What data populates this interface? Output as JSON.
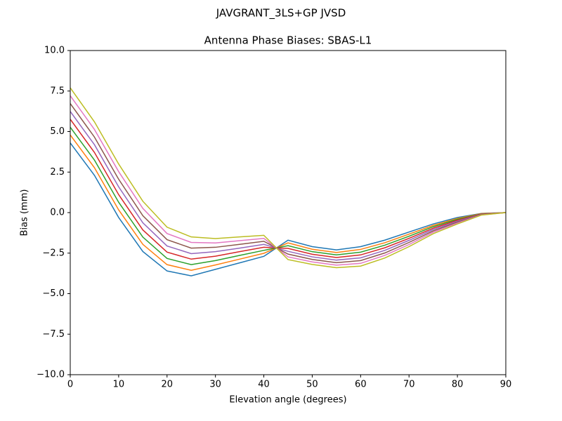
{
  "chart_data": {
    "type": "line",
    "suptitle": "JAVGRANT_3LS+GP JVSD",
    "title": "Antenna Phase Biases: SBAS-L1",
    "x_label": "Elevation angle (degrees)",
    "y_label": "Bias (mm)",
    "x": [
      0,
      5,
      10,
      15,
      20,
      25,
      30,
      35,
      40,
      45,
      50,
      55,
      60,
      65,
      70,
      75,
      80,
      85,
      90
    ],
    "series": [
      {
        "color": "#1f77b4",
        "values": [
          4.3,
          2.3,
          -0.3,
          -2.4,
          -3.6,
          -3.9,
          -3.5,
          -3.1,
          -2.7,
          -1.7,
          -2.1,
          -2.3,
          -2.1,
          -1.7,
          -1.2,
          -0.7,
          -0.3,
          -0.05,
          0
        ]
      },
      {
        "color": "#ff7f0e",
        "values": [
          4.79,
          2.77,
          0.17,
          -1.96,
          -3.21,
          -3.56,
          -3.23,
          -2.87,
          -2.51,
          -1.87,
          -2.26,
          -2.46,
          -2.27,
          -1.86,
          -1.33,
          -0.79,
          -0.36,
          -0.06,
          0
        ]
      },
      {
        "color": "#2ca02c",
        "values": [
          5.27,
          3.24,
          0.64,
          -1.51,
          -2.83,
          -3.21,
          -2.96,
          -2.64,
          -2.33,
          -2.04,
          -2.41,
          -2.61,
          -2.44,
          -2.01,
          -1.46,
          -0.87,
          -0.41,
          -0.08,
          0
        ]
      },
      {
        "color": "#d62728",
        "values": [
          5.76,
          3.71,
          1.11,
          -1.07,
          -2.44,
          -2.87,
          -2.69,
          -2.41,
          -2.14,
          -2.21,
          -2.57,
          -2.77,
          -2.61,
          -2.17,
          -1.59,
          -0.96,
          -0.47,
          -0.09,
          0
        ]
      },
      {
        "color": "#9467bd",
        "values": [
          6.24,
          4.19,
          1.59,
          -0.63,
          -2.06,
          -2.53,
          -2.41,
          -2.19,
          -1.96,
          -2.39,
          -2.73,
          -2.93,
          -2.79,
          -2.33,
          -1.71,
          -1.04,
          -0.53,
          -0.11,
          0
        ]
      },
      {
        "color": "#8c564b",
        "values": [
          6.73,
          4.66,
          2.06,
          -0.19,
          -1.67,
          -2.19,
          -2.14,
          -1.96,
          -1.77,
          -2.56,
          -2.89,
          -3.09,
          -2.96,
          -2.49,
          -1.84,
          -1.13,
          -0.59,
          -0.12,
          0
        ]
      },
      {
        "color": "#e377c2",
        "values": [
          7.21,
          5.13,
          2.53,
          0.26,
          -1.29,
          -1.84,
          -1.87,
          -1.73,
          -1.59,
          -2.73,
          -3.04,
          -3.24,
          -3.13,
          -2.64,
          -1.97,
          -1.21,
          -0.64,
          -0.14,
          0
        ]
      },
      {
        "color": "#bcbd22",
        "values": [
          7.7,
          5.6,
          3.0,
          0.7,
          -0.9,
          -1.5,
          -1.6,
          -1.5,
          -1.4,
          -2.9,
          -3.2,
          -3.4,
          -3.3,
          -2.8,
          -2.1,
          -1.3,
          -0.7,
          -0.15,
          0
        ]
      }
    ],
    "xlim": [
      0,
      90
    ],
    "xticks": [
      0,
      10,
      20,
      30,
      40,
      50,
      60,
      70,
      80,
      90
    ],
    "ylim": [
      -10,
      10
    ],
    "yticks": [
      {
        "value": -10,
        "label": "−10.0"
      },
      {
        "value": -7.5,
        "label": "−7.5"
      },
      {
        "value": -5,
        "label": "−5.0"
      },
      {
        "value": -2.5,
        "label": "−2.5"
      },
      {
        "value": 0,
        "label": "0.0"
      },
      {
        "value": 2.5,
        "label": "2.5"
      },
      {
        "value": 5,
        "label": "5.0"
      },
      {
        "value": 7.5,
        "label": "7.5"
      },
      {
        "value": 10,
        "label": "10.0"
      }
    ],
    "grid": false
  }
}
